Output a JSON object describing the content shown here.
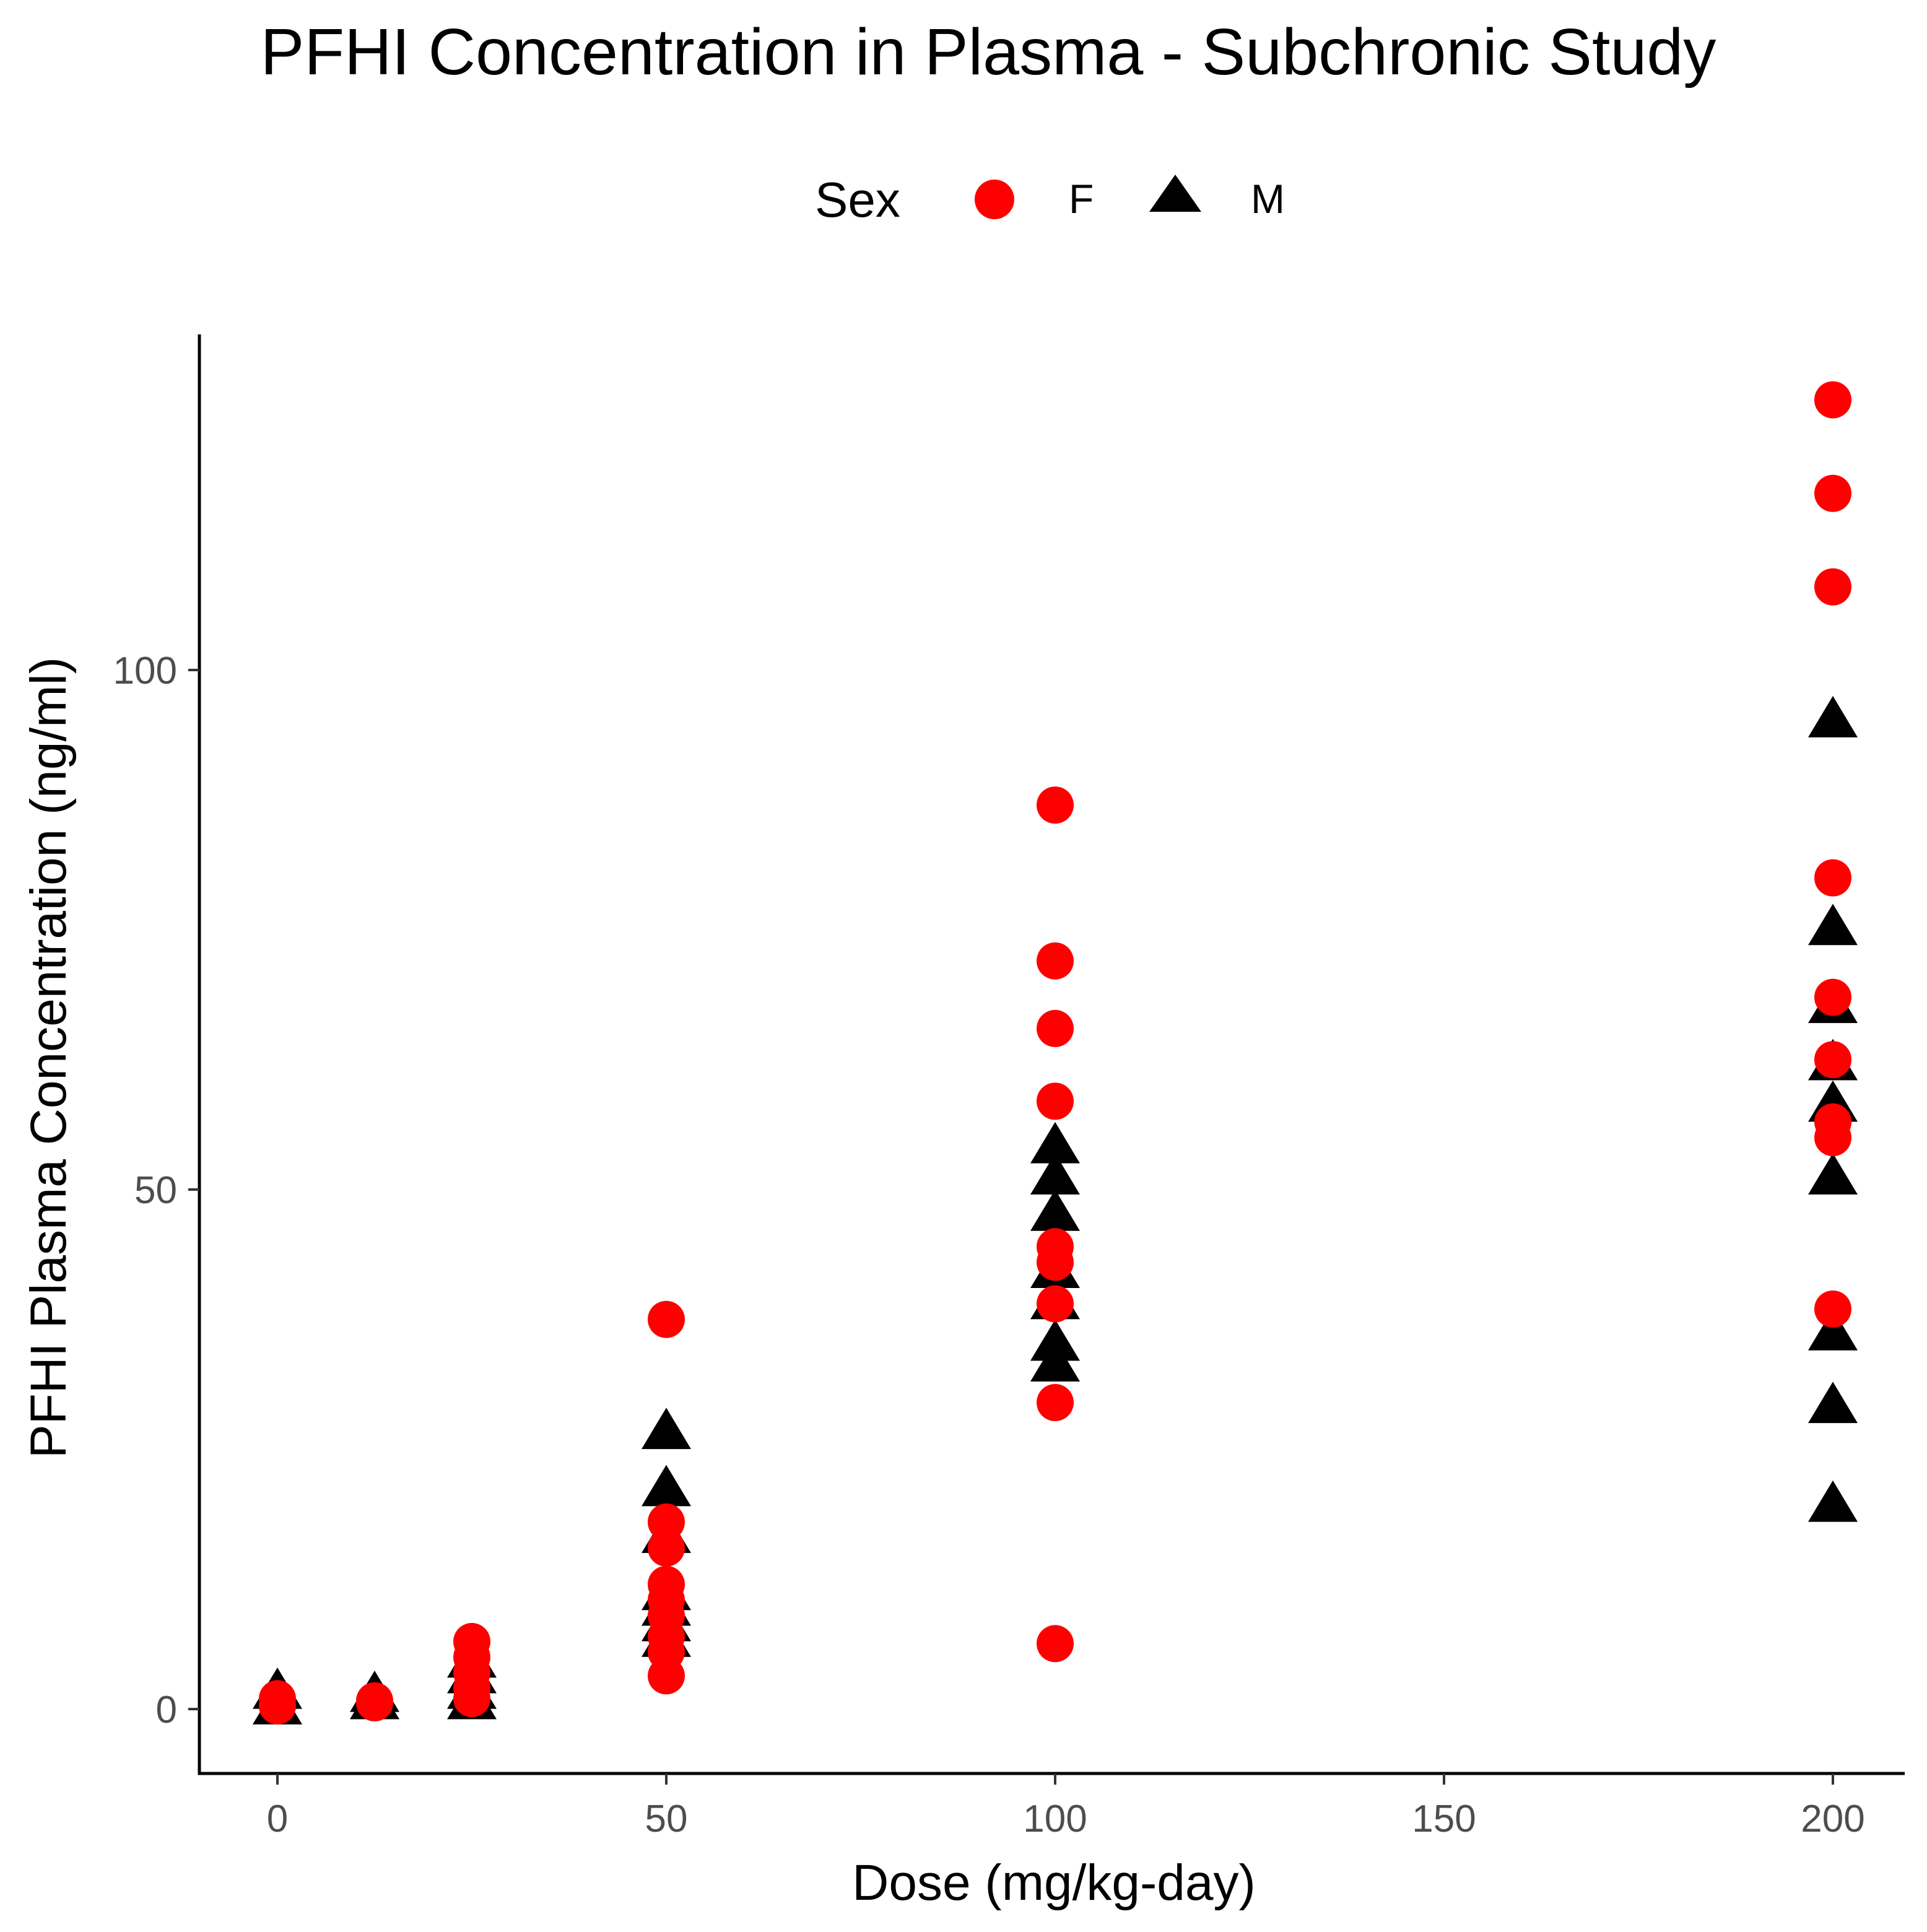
{
  "chart_data": {
    "type": "scatter",
    "title": "PFHI Concentration in Plasma - Subchronic Study",
    "xlabel": "Dose (mg/kg-day)",
    "ylabel": "PFHI Plasma Concentration (ng/ml)",
    "xlim": [
      -10,
      210
    ],
    "ylim": [
      -6,
      132
    ],
    "xticks": [
      0,
      50,
      100,
      150,
      200
    ],
    "yticks": [
      0,
      50,
      100
    ],
    "xtick_labels": [
      "0",
      "50",
      "100",
      "150",
      "200"
    ],
    "ytick_labels": [
      "0",
      "50",
      "100"
    ],
    "legend": {
      "title": "Sex",
      "placement": "top",
      "entries": [
        "F",
        "M"
      ]
    },
    "series": [
      {
        "name": "F",
        "shape": "circle",
        "color": "#ff0000",
        "points": [
          [
            0,
            1.0
          ],
          [
            0,
            0.3
          ],
          [
            12.5,
            0.8
          ],
          [
            12.5,
            0.6
          ],
          [
            25,
            6.5
          ],
          [
            25,
            5.0
          ],
          [
            25,
            3.5
          ],
          [
            25,
            2.0
          ],
          [
            25,
            1.0
          ],
          [
            50,
            37.5
          ],
          [
            50,
            18.0
          ],
          [
            50,
            15.5
          ],
          [
            50,
            12.0
          ],
          [
            50,
            10.5
          ],
          [
            50,
            9.0
          ],
          [
            50,
            7.0
          ],
          [
            50,
            5.5
          ],
          [
            50,
            3.2
          ],
          [
            100,
            87.0
          ],
          [
            100,
            72.0
          ],
          [
            100,
            65.5
          ],
          [
            100,
            58.5
          ],
          [
            100,
            44.5
          ],
          [
            100,
            43.0
          ],
          [
            100,
            39.0
          ],
          [
            100,
            29.5
          ],
          [
            100,
            6.3
          ],
          [
            200,
            126.0
          ],
          [
            200,
            117.0
          ],
          [
            200,
            108.0
          ],
          [
            200,
            80.0
          ],
          [
            200,
            68.5
          ],
          [
            200,
            62.5
          ],
          [
            200,
            56.5
          ],
          [
            200,
            55.0
          ],
          [
            200,
            38.5
          ]
        ]
      },
      {
        "name": "M",
        "shape": "triangle",
        "color": "#000000",
        "points": [
          [
            0,
            1.5
          ],
          [
            0,
            0.0
          ],
          [
            12.5,
            1.2
          ],
          [
            12.5,
            0.5
          ],
          [
            25,
            4.5
          ],
          [
            25,
            3.0
          ],
          [
            25,
            1.5
          ],
          [
            25,
            0.5
          ],
          [
            50,
            26.5
          ],
          [
            50,
            21.0
          ],
          [
            50,
            16.5
          ],
          [
            50,
            11.0
          ],
          [
            50,
            9.5
          ],
          [
            50,
            8.0
          ],
          [
            50,
            6.5
          ],
          [
            100,
            54.0
          ],
          [
            100,
            51.0
          ],
          [
            100,
            47.5
          ],
          [
            100,
            42.0
          ],
          [
            100,
            39.0
          ],
          [
            100,
            35.0
          ],
          [
            100,
            33.0
          ],
          [
            200,
            95.0
          ],
          [
            200,
            75.0
          ],
          [
            200,
            67.5
          ],
          [
            200,
            62.0
          ],
          [
            200,
            58.0
          ],
          [
            200,
            51.0
          ],
          [
            200,
            36.0
          ],
          [
            200,
            29.0
          ],
          [
            200,
            19.5
          ]
        ]
      }
    ]
  }
}
